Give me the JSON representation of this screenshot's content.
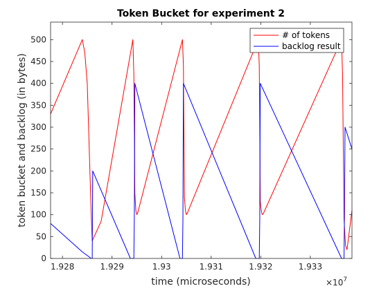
{
  "chart_data": {
    "type": "line",
    "title": "Token Bucket for experiment 2",
    "xlabel": "time (microseconds)",
    "ylabel": "token bucket and backlog (in bytes)",
    "x_exponent_label": "×10",
    "x_exponent_power": "7",
    "xlim": [
      1.92776,
      1.93384
    ],
    "ylim": [
      0,
      540
    ],
    "x_ticks": [
      1.928,
      1.929,
      1.93,
      1.931,
      1.932,
      1.933
    ],
    "x_tick_labels": [
      "1.928",
      "1.929",
      "1.93",
      "1.931",
      "1.932",
      "1.933"
    ],
    "y_ticks": [
      0,
      50,
      100,
      150,
      200,
      250,
      300,
      350,
      400,
      450,
      500
    ],
    "y_tick_labels": [
      "0",
      "50",
      "100",
      "150",
      "200",
      "250",
      "300",
      "350",
      "400",
      "450",
      "500"
    ],
    "grid": false,
    "legend_position": "top-right",
    "series": [
      {
        "name": "# of tokens",
        "color": "#ff0000",
        "x": [
          1.92776,
          1.9284,
          1.92845,
          1.9285,
          1.92858,
          1.9286,
          1.92878,
          1.92942,
          1.92944,
          1.92946,
          1.92948,
          1.9295,
          1.92952,
          1.93042,
          1.93044,
          1.93046,
          1.93048,
          1.9305,
          1.93052,
          1.93195,
          1.93197,
          1.93199,
          1.93201,
          1.93203,
          1.93205,
          1.93363,
          1.93365,
          1.93368,
          1.93371,
          1.93374,
          1.93384
        ],
        "y": [
          330,
          500,
          470,
          400,
          100,
          40,
          85,
          500,
          420,
          150,
          110,
          100,
          105,
          500,
          440,
          140,
          110,
          100,
          104,
          500,
          440,
          130,
          110,
          100,
          102,
          500,
          420,
          90,
          30,
          20,
          110
        ]
      },
      {
        "name": "backlog result",
        "color": "#0000ff",
        "x": [
          1.92776,
          1.9284,
          1.92858,
          1.9286,
          1.92861,
          1.92937,
          1.92939,
          1.92944,
          1.92945,
          1.92946,
          1.93037,
          1.93039,
          1.93042,
          1.93043,
          1.93044,
          1.9319,
          1.93192,
          1.93197,
          1.93198,
          1.93199,
          1.93363,
          1.93365,
          1.93368,
          1.93369,
          1.9337,
          1.93384
        ],
        "y": [
          80,
          15,
          0,
          0,
          200,
          0,
          0,
          0,
          100,
          400,
          0,
          0,
          0,
          90,
          400,
          0,
          0,
          0,
          90,
          400,
          0,
          0,
          0,
          120,
          300,
          250
        ]
      }
    ]
  }
}
